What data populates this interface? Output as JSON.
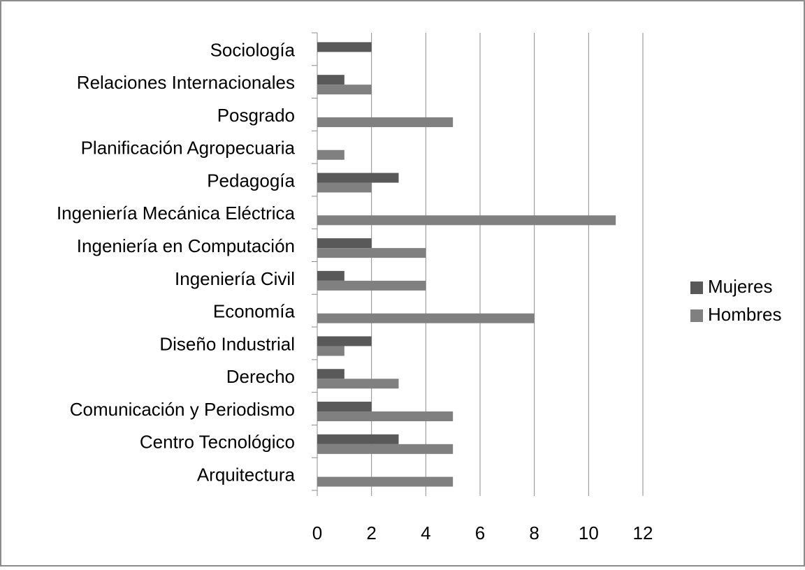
{
  "chart_data": {
    "type": "bar",
    "orientation": "horizontal",
    "categories": [
      "Sociología",
      "Relaciones Internacionales",
      "Posgrado",
      "Planificación Agropecuaria",
      "Pedagogía",
      "Ingeniería Mecánica Eléctrica",
      "Ingeniería en Computación",
      "Ingeniería Civil",
      "Economía",
      "Diseño Industrial",
      "Derecho",
      "Comunicación y Periodismo",
      "Centro Tecnológico",
      "Arquitectura"
    ],
    "series": [
      {
        "name": "Mujeres",
        "color": "#595959",
        "values": [
          2,
          1,
          0,
          0,
          3,
          0,
          2,
          1,
          0,
          2,
          1,
          2,
          3,
          0
        ]
      },
      {
        "name": "Hombres",
        "color": "#808080",
        "values": [
          0,
          2,
          5,
          1,
          2,
          11,
          4,
          4,
          8,
          1,
          3,
          5,
          5,
          5
        ]
      }
    ],
    "xlim": [
      0,
      12
    ],
    "xticks": [
      0,
      2,
      4,
      6,
      8,
      10,
      12
    ],
    "grid": true,
    "legend": "right"
  }
}
